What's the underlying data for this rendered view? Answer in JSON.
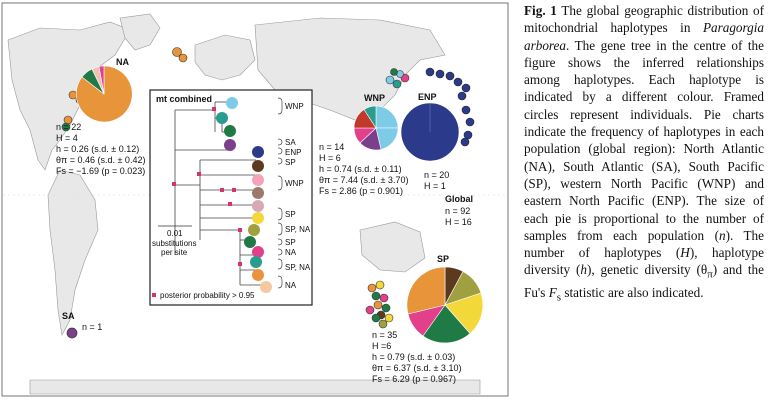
{
  "caption": {
    "fig": "Fig. 1",
    "t1": "The global geographic distribution of mitochondrial haplotypes in",
    "species": "Paragorgia arborea",
    "t2": ". The gene tree in the centre of the figure shows the inferred relationships among haplotypes. Each haplotype is indicated by a different colour. Framed circles represent individuals. Pie charts indicate the frequency of haplotypes in each population (global region): North Atlantic (NA), South Atlantic (SA), South Pacific (SP), western North Pacific (WNP) and eastern North Pacific (ENP). The size of each pie is proportional to the number of samples from each population (",
    "n": "n",
    "t3": "). The number of haplotypes (",
    "H": "H",
    "t4": "), haplotype diversity (",
    "h": "h",
    "t5": "), genetic diversity (θ",
    "pi": "π",
    "t6": ") and the Fu's",
    "Fs": "F",
    "s": "s",
    "t7": " statistic are also indicated."
  },
  "na": {
    "label": "NA",
    "n": "n = 22",
    "H": "H = 4",
    "h": "h = 0.26 (s.d. ± 0.12)",
    "theta": "θπ = 0.46 (s.d. ± 0.42)",
    "fs": "Fs = −1.69 (p = 0.023)"
  },
  "sa": {
    "label": "SA",
    "n": "n = 1"
  },
  "wnp": {
    "label": "WNP",
    "n": "n = 14",
    "H": "H = 6",
    "h": "h = 0.74 (s.d. ± 0.11)",
    "theta": "θπ = 7.44 (s.d. ± 3.70)",
    "fs": "Fs = 2.86 (p = 0.901)"
  },
  "enp": {
    "label": "ENP",
    "n": "n = 20",
    "H": "H = 1"
  },
  "sp": {
    "label": "SP",
    "n": "n = 35",
    "H": "H =6",
    "h": "h = 0.79 (s.d. ± 0.03)",
    "theta": "θπ = 6.37 (s.d. ± 3.10)",
    "fs": "Fs = 6.29 (p = 0.967)"
  },
  "global": {
    "label": "Global",
    "n": "n = 92",
    "H": "H = 16"
  },
  "tree": {
    "title": "mt combined",
    "scale_value": "0.01",
    "scale_unit1": "substitutions",
    "scale_unit2": "per site",
    "legend": "posterior probability > 0.95",
    "groups": [
      "WNP",
      "SA",
      "ENP",
      "SP",
      "WNP",
      "SP",
      "SP, NA",
      "SP",
      "NA",
      "SP, NA",
      "NA"
    ]
  },
  "colors": {
    "ocean": "#ffffff",
    "land": "#e6e6e6",
    "orange": "#e8943a",
    "enp_blue": "#2b3a8a",
    "sky": "#7ecbe8",
    "teal": "#2a9d8f",
    "green": "#1f7a45",
    "pink": "#e3408b",
    "yellow": "#f2d838",
    "brown": "#5b3a20",
    "purple": "#7b3f8c",
    "posterior_marker": "#d6336c"
  }
}
